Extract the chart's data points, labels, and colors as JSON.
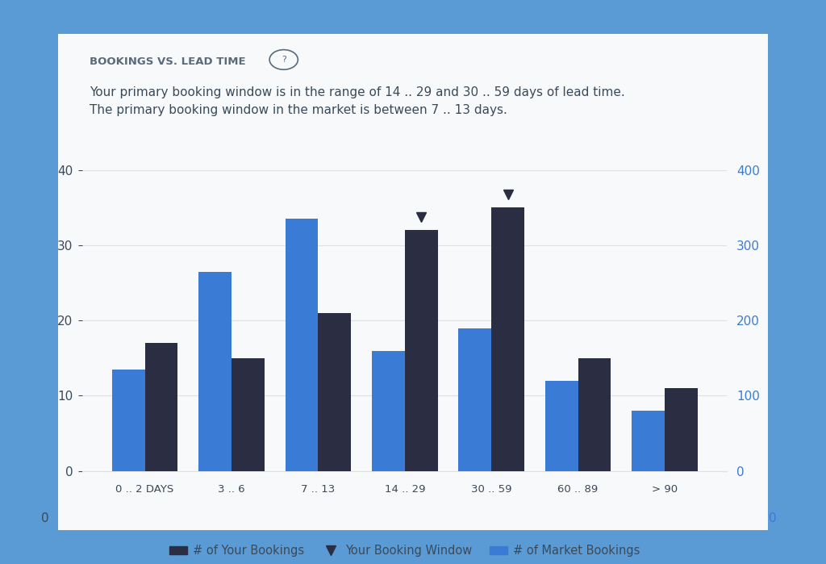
{
  "title": "BOOKINGS VS. LEAD TIME",
  "subtitle_line1": "Your primary booking window is in the range of 14 .. 29 and 30 .. 59 days of lead time.",
  "subtitle_line2": "The primary booking window in the market is between 7 .. 13 days.",
  "categories": [
    "0 .. 2 DAYS",
    "3 .. 6",
    "7 .. 13",
    "14 .. 29",
    "30 .. 59",
    "60 .. 89",
    "> 90"
  ],
  "your_bookings": [
    17,
    15,
    21,
    32,
    35,
    15,
    11
  ],
  "market_bookings": [
    13.5,
    26.5,
    33.5,
    16,
    19,
    12,
    8
  ],
  "booking_window_markers": [
    3,
    4
  ],
  "your_bookings_color": "#2b2d42",
  "market_bookings_color": "#3a7bd5",
  "outer_background": "#5b9bd5",
  "card_background": "#f8f9fa",
  "left_yaxis_ticks": [
    0,
    10,
    20,
    30,
    40
  ],
  "right_yaxis_ticks": [
    0,
    100,
    200,
    300,
    400
  ],
  "ylim_left": [
    0,
    42
  ],
  "ylim_right": [
    0,
    420
  ],
  "title_color": "#5a6a7a",
  "subtitle_color": "#3a4a5a",
  "right_axis_color": "#3a7bd5",
  "grid_color": "#e0e0e0",
  "legend_labels": [
    "# of Your Bookings",
    "Your Booking Window",
    "# of Market Bookings"
  ]
}
